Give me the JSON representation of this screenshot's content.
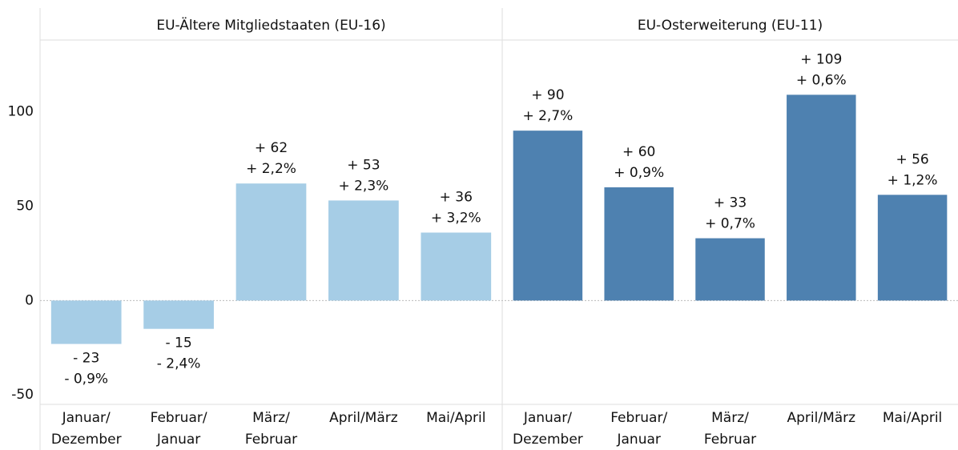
{
  "chart_data": {
    "type": "bar",
    "ylim": [
      -55,
      138
    ],
    "yticks": [
      -50,
      0,
      50,
      100
    ],
    "panels": [
      {
        "title": "EU-Ältere Mitgliedstaaten (EU-16)",
        "color": "#a6cde6",
        "categories": [
          [
            "Januar/",
            "Dezember"
          ],
          [
            "Februar/",
            "Januar"
          ],
          [
            "März/",
            "Februar"
          ],
          [
            "April/März"
          ],
          [
            "Mai/April"
          ]
        ],
        "values": [
          -23,
          -15,
          62,
          53,
          36
        ],
        "value_labels": [
          "- 23",
          "- 15",
          "+ 62",
          "+ 53",
          "+ 36"
        ],
        "percent_labels": [
          "- 0,9%",
          "- 2,4%",
          "+ 2,2%",
          "+ 2,3%",
          "+ 3,2%"
        ]
      },
      {
        "title": "EU-Osterweiterung (EU-11)",
        "color": "#4e81b0",
        "categories": [
          [
            "Januar/",
            "Dezember"
          ],
          [
            "Februar/",
            "Januar"
          ],
          [
            "März/",
            "Februar"
          ],
          [
            "April/März"
          ],
          [
            "Mai/April"
          ]
        ],
        "values": [
          90,
          60,
          33,
          109,
          56
        ],
        "value_labels": [
          "+ 90",
          "+ 60",
          "+ 33",
          "+ 109",
          "+ 56"
        ],
        "percent_labels": [
          "+ 2,7%",
          "+ 0,9%",
          "+ 0,7%",
          "+ 0,6%",
          "+ 1,2%"
        ]
      }
    ]
  }
}
